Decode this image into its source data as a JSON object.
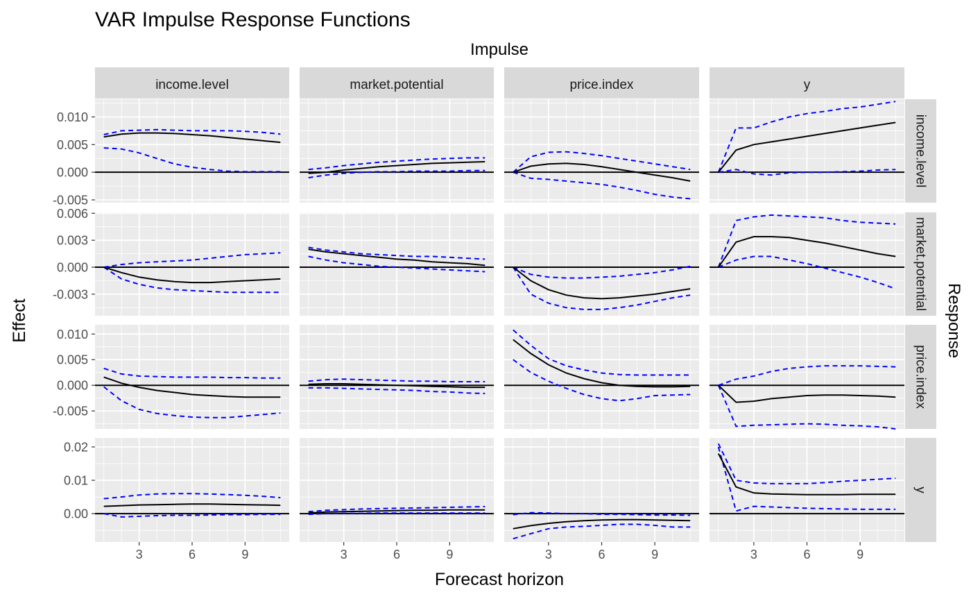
{
  "title": "VAR Impulse Response Functions",
  "facet_top_label": "Impulse",
  "facet_right_label": "Response",
  "xlabel": "Forecast horizon",
  "ylabel": "Effect",
  "colors": {
    "panel_bg": "#EBEBEB",
    "grid": "#FFFFFF",
    "strip_bg": "#D9D9D9",
    "irf_line": "#000000",
    "ci_line": "#0000FF",
    "zero_line": "#000000",
    "text": "#000000",
    "tick_text": "#4D4D4D"
  },
  "chart_data": {
    "type": "line",
    "facet_layout": "grid",
    "horizons": [
      1,
      2,
      3,
      4,
      5,
      6,
      7,
      8,
      9,
      10,
      11
    ],
    "impulses": [
      "income.level",
      "market.potential",
      "price.index",
      "y"
    ],
    "responses": [
      "income.level",
      "market.potential",
      "price.index",
      "y"
    ],
    "series_style": {
      "irf": "solid black line",
      "lower": "dashed blue line",
      "upper": "dashed blue line",
      "zero": "solid black reference line at 0"
    },
    "x_ticks": [
      3,
      6,
      9
    ],
    "xlim": [
      0.5,
      11.5
    ],
    "rows": [
      {
        "response": "income.level",
        "ylim": [
          -0.0055,
          0.0132
        ],
        "y_ticks": [
          -0.005,
          0.0,
          0.005,
          0.01
        ],
        "y_tick_labels": [
          "-0.005",
          "0.000",
          "0.005",
          "0.010"
        ],
        "panels": [
          {
            "impulse": "income.level",
            "irf": [
              0.0064,
              0.0069,
              0.0071,
              0.0071,
              0.007,
              0.0068,
              0.0066,
              0.0063,
              0.006,
              0.0057,
              0.0054
            ],
            "lower": [
              0.0044,
              0.0042,
              0.0035,
              0.0025,
              0.0015,
              0.0009,
              0.0005,
              0.0002,
              0.0001,
              0.0001,
              0.0001
            ],
            "upper": [
              0.0068,
              0.0075,
              0.0076,
              0.0077,
              0.0076,
              0.0075,
              0.0075,
              0.0075,
              0.0074,
              0.0072,
              0.0069
            ]
          },
          {
            "impulse": "market.potential",
            "irf": [
              -0.0002,
              0.0,
              0.0004,
              0.0007,
              0.001,
              0.0012,
              0.0014,
              0.0016,
              0.0017,
              0.0018,
              0.0019
            ],
            "lower": [
              -0.001,
              -0.0005,
              -0.0002,
              0.0,
              0.0001,
              0.0001,
              0.0002,
              0.0002,
              0.0002,
              0.0003,
              0.0003
            ],
            "upper": [
              0.0005,
              0.0008,
              0.0012,
              0.0015,
              0.0018,
              0.002,
              0.0022,
              0.0024,
              0.0025,
              0.0026,
              0.0026
            ]
          },
          {
            "impulse": "price.index",
            "irf": [
              0.0,
              0.0011,
              0.0015,
              0.0016,
              0.0014,
              0.001,
              0.0005,
              0.0,
              -0.0005,
              -0.001,
              -0.0016
            ],
            "lower": [
              0.0,
              -0.0011,
              -0.0013,
              -0.0016,
              -0.0019,
              -0.0022,
              -0.0027,
              -0.0033,
              -0.004,
              -0.0045,
              -0.0048
            ],
            "upper": [
              0.0,
              0.0028,
              0.0036,
              0.0037,
              0.0034,
              0.003,
              0.0025,
              0.002,
              0.0015,
              0.001,
              0.0005
            ]
          },
          {
            "impulse": "y",
            "irf": [
              0.0,
              0.004,
              0.005,
              0.0055,
              0.006,
              0.0065,
              0.007,
              0.0075,
              0.008,
              0.0085,
              0.009
            ],
            "lower": [
              0.0,
              0.0005,
              -0.0003,
              -0.0005,
              -0.0001,
              0.0,
              0.0,
              0.0001,
              0.0002,
              0.0004,
              0.0005
            ],
            "upper": [
              0.0,
              0.008,
              0.008,
              0.0091,
              0.01,
              0.0106,
              0.011,
              0.0115,
              0.0118,
              0.0123,
              0.0128
            ]
          }
        ]
      },
      {
        "response": "market.potential",
        "ylim": [
          -0.0054,
          0.0061
        ],
        "y_ticks": [
          -0.003,
          0.0,
          0.003,
          0.006
        ],
        "y_tick_labels": [
          "-0.003",
          "0.000",
          "0.003",
          "0.006"
        ],
        "panels": [
          {
            "impulse": "income.level",
            "irf": [
              0.0,
              -0.0006,
              -0.0011,
              -0.0014,
              -0.0016,
              -0.0017,
              -0.0017,
              -0.0016,
              -0.0015,
              -0.0014,
              -0.0013
            ],
            "lower": [
              0.0,
              -0.0013,
              -0.0019,
              -0.0023,
              -0.0025,
              -0.0026,
              -0.0027,
              -0.0028,
              -0.0028,
              -0.0028,
              -0.0028
            ],
            "upper": [
              0.0,
              0.0003,
              0.0005,
              0.0006,
              0.0007,
              0.0008,
              0.001,
              0.0012,
              0.0014,
              0.0015,
              0.0016
            ]
          },
          {
            "impulse": "market.potential",
            "irf": [
              0.002,
              0.0017,
              0.0015,
              0.0013,
              0.0011,
              0.0009,
              0.0008,
              0.0006,
              0.0005,
              0.0004,
              0.0002
            ],
            "lower": [
              0.0012,
              0.0008,
              0.0005,
              0.0003,
              0.0001,
              -0.0,
              -0.0001,
              -0.0002,
              -0.0003,
              -0.0004,
              -0.0005
            ],
            "upper": [
              0.0022,
              0.0019,
              0.0017,
              0.0015,
              0.0014,
              0.0013,
              0.0012,
              0.0012,
              0.0011,
              0.001,
              0.0009
            ]
          },
          {
            "impulse": "price.index",
            "irf": [
              0.0,
              -0.0015,
              -0.0025,
              -0.0031,
              -0.0034,
              -0.0035,
              -0.0034,
              -0.0032,
              -0.003,
              -0.0027,
              -0.0024
            ],
            "lower": [
              0.0,
              -0.003,
              -0.004,
              -0.0045,
              -0.0047,
              -0.0047,
              -0.0045,
              -0.0042,
              -0.0038,
              -0.0034,
              -0.0031
            ],
            "upper": [
              0.0,
              -0.0008,
              -0.0011,
              -0.0012,
              -0.0012,
              -0.0011,
              -0.001,
              -0.0008,
              -0.0006,
              -0.0003,
              0.0001
            ]
          },
          {
            "impulse": "y",
            "irf": [
              0.0,
              0.0028,
              0.0034,
              0.0034,
              0.0033,
              0.003,
              0.0027,
              0.0023,
              0.0019,
              0.0015,
              0.0012
            ],
            "lower": [
              0.0,
              0.0008,
              0.0012,
              0.0012,
              0.0008,
              0.0004,
              -0.0001,
              -0.0006,
              -0.0011,
              -0.0017,
              -0.0024
            ],
            "upper": [
              0.0,
              0.0052,
              0.0056,
              0.0058,
              0.0057,
              0.0056,
              0.0055,
              0.0052,
              0.005,
              0.0049,
              0.0048
            ]
          }
        ]
      },
      {
        "response": "price.index",
        "ylim": [
          -0.0085,
          0.0118
        ],
        "y_ticks": [
          -0.005,
          0.0,
          0.005,
          0.01
        ],
        "y_tick_labels": [
          "-0.005",
          "0.000",
          "0.005",
          "0.010"
        ],
        "panels": [
          {
            "impulse": "income.level",
            "irf": [
              0.0016,
              0.0004,
              -0.0004,
              -0.001,
              -0.0014,
              -0.0018,
              -0.002,
              -0.0022,
              -0.0023,
              -0.0023,
              -0.0023
            ],
            "lower": [
              -0.0003,
              -0.003,
              -0.0047,
              -0.0055,
              -0.0059,
              -0.0062,
              -0.0063,
              -0.0063,
              -0.006,
              -0.0057,
              -0.0054
            ],
            "upper": [
              0.0033,
              0.0022,
              0.0018,
              0.0017,
              0.0016,
              0.0016,
              0.0016,
              0.0015,
              0.0015,
              0.0014,
              0.0014
            ]
          },
          {
            "impulse": "market.potential",
            "irf": [
              0.0002,
              0.0003,
              0.0003,
              0.0002,
              0.0001,
              0.0,
              -0.0001,
              -0.0002,
              -0.0003,
              -0.0004,
              -0.0004
            ],
            "lower": [
              -0.0005,
              -0.0005,
              -0.0006,
              -0.0007,
              -0.0008,
              -0.0009,
              -0.001,
              -0.0012,
              -0.0013,
              -0.0015,
              -0.0016
            ],
            "upper": [
              0.0008,
              0.0011,
              0.0012,
              0.0011,
              0.001,
              0.0009,
              0.0008,
              0.0008,
              0.0007,
              0.0007,
              0.0007
            ]
          },
          {
            "impulse": "price.index",
            "irf": [
              0.0089,
              0.0062,
              0.004,
              0.0024,
              0.0013,
              0.0005,
              0.0,
              -0.0002,
              -0.0003,
              -0.0003,
              -0.0002
            ],
            "lower": [
              0.005,
              0.0025,
              0.0008,
              -0.0006,
              -0.0018,
              -0.0026,
              -0.003,
              -0.0026,
              -0.002,
              -0.0019,
              -0.0018
            ],
            "upper": [
              0.0108,
              0.0078,
              0.0052,
              0.0038,
              0.003,
              0.0024,
              0.0021,
              0.002,
              0.002,
              0.002,
              0.002
            ]
          },
          {
            "impulse": "y",
            "irf": [
              0.0,
              -0.0033,
              -0.0031,
              -0.0026,
              -0.0023,
              -0.002,
              -0.0019,
              -0.0019,
              -0.002,
              -0.0021,
              -0.0023
            ],
            "lower": [
              0.0,
              -0.008,
              -0.0078,
              -0.0077,
              -0.0076,
              -0.0075,
              -0.0076,
              -0.0078,
              -0.0079,
              -0.0081,
              -0.0085
            ],
            "upper": [
              0.0,
              0.0012,
              0.0018,
              0.0027,
              0.0033,
              0.0036,
              0.0038,
              0.0038,
              0.0038,
              0.0037,
              0.0036
            ]
          }
        ]
      },
      {
        "response": "y",
        "ylim": [
          -0.0085,
          0.0227
        ],
        "y_ticks": [
          0.0,
          0.01,
          0.02
        ],
        "y_tick_labels": [
          "0.00",
          "0.01",
          "0.02"
        ],
        "panels": [
          {
            "impulse": "income.level",
            "irf": [
              0.0022,
              0.0024,
              0.0026,
              0.0027,
              0.0028,
              0.0029,
              0.0029,
              0.0028,
              0.0027,
              0.0026,
              0.0025
            ],
            "lower": [
              0.0,
              -0.001,
              -0.0008,
              -0.0006,
              -0.0005,
              -0.0005,
              -0.0004,
              -0.0003,
              -0.0003,
              -0.0002,
              -0.0002
            ],
            "upper": [
              0.0045,
              0.005,
              0.0056,
              0.0059,
              0.006,
              0.006,
              0.0059,
              0.0057,
              0.0055,
              0.0052,
              0.0048
            ]
          },
          {
            "impulse": "market.potential",
            "irf": [
              0.0002,
              0.0005,
              0.0006,
              0.0007,
              0.0008,
              0.0009,
              0.001,
              0.001,
              0.0011,
              0.0011,
              0.0011
            ],
            "lower": [
              -0.0002,
              0.0,
              0.0001,
              0.0001,
              0.0002,
              0.0002,
              0.0002,
              0.0002,
              0.0002,
              0.0002,
              0.0002
            ],
            "upper": [
              0.0006,
              0.001,
              0.0012,
              0.0014,
              0.0015,
              0.0016,
              0.0017,
              0.0018,
              0.0019,
              0.002,
              0.0021
            ]
          },
          {
            "impulse": "price.index",
            "irf": [
              -0.0045,
              -0.0036,
              -0.0029,
              -0.0024,
              -0.0021,
              -0.0019,
              -0.0018,
              -0.0018,
              -0.0019,
              -0.002,
              -0.0021
            ],
            "lower": [
              -0.0075,
              -0.006,
              -0.0045,
              -0.004,
              -0.0038,
              -0.0035,
              -0.0032,
              -0.0032,
              -0.0035,
              -0.004,
              -0.004
            ],
            "upper": [
              -0.0003,
              0.0003,
              0.0002,
              0.0,
              0.0,
              -0.0002,
              -0.0002,
              -0.0003,
              -0.0004,
              -0.0004,
              -0.0005
            ]
          },
          {
            "impulse": "y",
            "irf": [
              0.018,
              0.008,
              0.0062,
              0.0059,
              0.0058,
              0.0057,
              0.0057,
              0.0057,
              0.0058,
              0.0058,
              0.0058
            ],
            "lower": [
              0.02,
              0.0008,
              0.0022,
              0.002,
              0.0018,
              0.0016,
              0.0015,
              0.0014,
              0.0013,
              0.0013,
              0.0013
            ],
            "upper": [
              0.021,
              0.01,
              0.0092,
              0.009,
              0.009,
              0.009,
              0.0093,
              0.0097,
              0.01,
              0.0103,
              0.0106
            ]
          }
        ]
      }
    ]
  }
}
